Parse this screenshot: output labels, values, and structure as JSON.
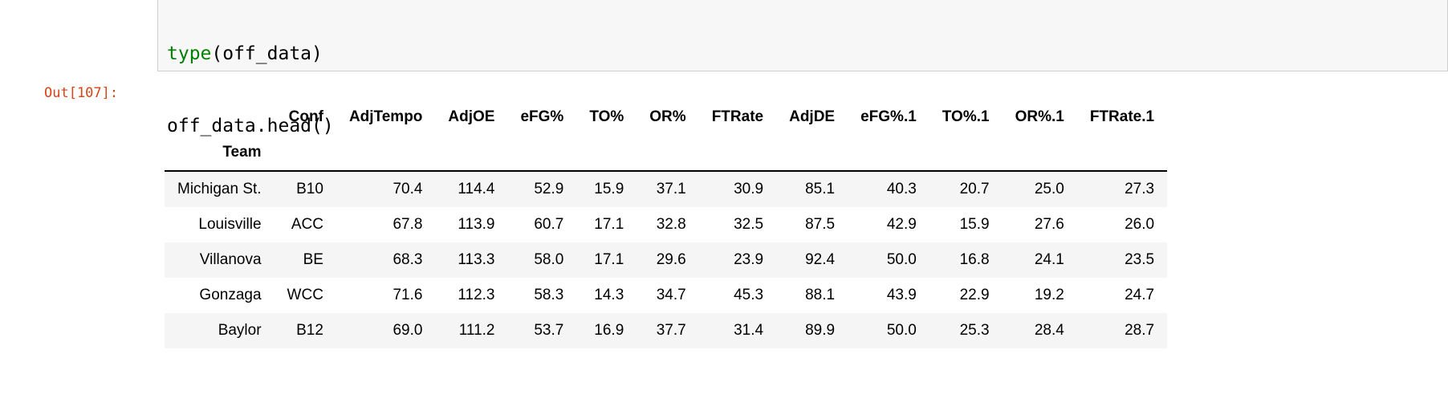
{
  "colors": {
    "out_prompt": "#d84315",
    "builtin_keyword": "#008000",
    "stripe_row": "#f5f5f5",
    "cell_border": "#cfcfcf",
    "cell_background": "#f7f7f7"
  },
  "code_cell": {
    "line1_builtin": "type",
    "line1_rest": "(off_data)",
    "line2": "off_data.head()"
  },
  "output": {
    "prompt": "Out[107]:"
  },
  "chart_data": {
    "type": "table",
    "index_name": "Team",
    "columns": [
      "Conf",
      "AdjTempo",
      "AdjOE",
      "eFG%",
      "TO%",
      "OR%",
      "FTRate",
      "AdjDE",
      "eFG%.1",
      "TO%.1",
      "OR%.1",
      "FTRate.1"
    ],
    "rows": [
      {
        "index": "Michigan St.",
        "values": [
          "B10",
          "70.4",
          "114.4",
          "52.9",
          "15.9",
          "37.1",
          "30.9",
          "85.1",
          "40.3",
          "20.7",
          "25.0",
          "27.3"
        ]
      },
      {
        "index": "Louisville",
        "values": [
          "ACC",
          "67.8",
          "113.9",
          "60.7",
          "17.1",
          "32.8",
          "32.5",
          "87.5",
          "42.9",
          "15.9",
          "27.6",
          "26.0"
        ]
      },
      {
        "index": "Villanova",
        "values": [
          "BE",
          "68.3",
          "113.3",
          "58.0",
          "17.1",
          "29.6",
          "23.9",
          "92.4",
          "50.0",
          "16.8",
          "24.1",
          "23.5"
        ]
      },
      {
        "index": "Gonzaga",
        "values": [
          "WCC",
          "71.6",
          "112.3",
          "58.3",
          "14.3",
          "34.7",
          "45.3",
          "88.1",
          "43.9",
          "22.9",
          "19.2",
          "24.7"
        ]
      },
      {
        "index": "Baylor",
        "values": [
          "B12",
          "69.0",
          "111.2",
          "53.7",
          "16.9",
          "37.7",
          "31.4",
          "89.9",
          "50.0",
          "25.3",
          "28.4",
          "28.7"
        ]
      }
    ]
  }
}
